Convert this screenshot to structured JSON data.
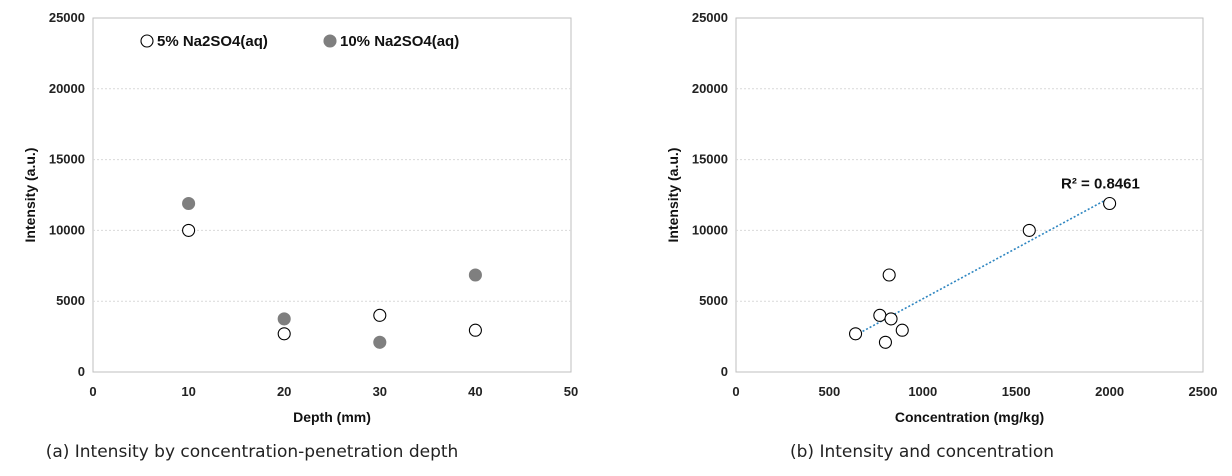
{
  "chart_data": [
    {
      "type": "scatter",
      "xlabel": "Depth (mm)",
      "ylabel": "Intensity (a.u.)",
      "xlim": [
        0,
        50
      ],
      "ylim": [
        0,
        25000
      ],
      "xticks": [
        0,
        10,
        20,
        30,
        40,
        50
      ],
      "yticks": [
        0,
        5000,
        10000,
        15000,
        20000,
        25000
      ],
      "grid": "horizontal",
      "legend_position": "top-left",
      "series": [
        {
          "name": "5% Na2SO4(aq)",
          "marker": "open-circle",
          "color": "#ffffff",
          "x": [
            10,
            20,
            30,
            40
          ],
          "y": [
            10000,
            2700,
            4000,
            2950
          ]
        },
        {
          "name": "10% Na2SO4(aq)",
          "marker": "filled-circle",
          "color": "#7f7f7f",
          "x": [
            10,
            20,
            30,
            40
          ],
          "y": [
            11900,
            3750,
            2100,
            6850
          ]
        }
      ],
      "caption": "(a) Intensity by concentration-penetration depth"
    },
    {
      "type": "scatter",
      "xlabel": "Concentration (mg/kg)",
      "ylabel": "Intensity (a.u.)",
      "xlim": [
        0,
        2500
      ],
      "ylim": [
        0,
        25000
      ],
      "xticks": [
        0,
        500,
        1000,
        1500,
        2000,
        2500
      ],
      "yticks": [
        0,
        5000,
        10000,
        15000,
        20000,
        25000
      ],
      "grid": "horizontal",
      "series": [
        {
          "marker": "open-circle",
          "color": "#ffffff",
          "x": [
            640,
            770,
            800,
            820,
            830,
            890,
            1570,
            2000
          ],
          "y": [
            2700,
            4000,
            2100,
            6850,
            3750,
            2950,
            10000,
            11900
          ]
        }
      ],
      "trendline": {
        "style": "dotted",
        "color": "#2e86c1",
        "x": [
          640,
          2000
        ],
        "y": [
          2600,
          12300
        ]
      },
      "annotation": "R² = 0.8461",
      "caption": "(b) Intensity and concentration"
    }
  ]
}
